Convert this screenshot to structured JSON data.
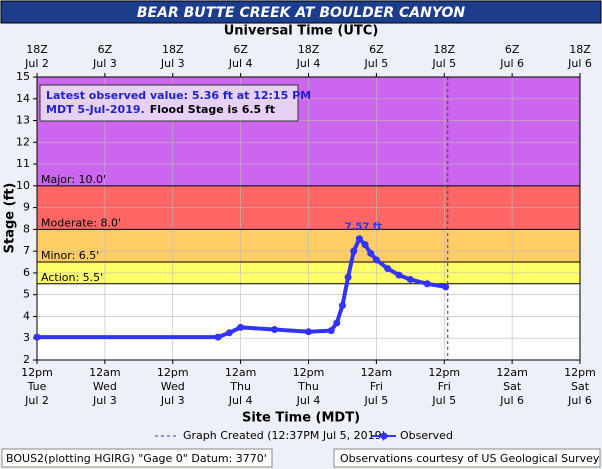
{
  "chart_data": {
    "type": "line",
    "title": "BEAR BUTTE CREEK AT BOULDER CANYON",
    "top_axis_label": "Universal Time (UTC)",
    "xlabel": "Site Time (MDT)",
    "ylabel": "Stage (ft)",
    "ylim": [
      2,
      15
    ],
    "yticks": [
      2,
      3,
      4,
      5,
      6,
      7,
      8,
      9,
      10,
      11,
      12,
      13,
      14,
      15
    ],
    "xlim": [
      "Jul 2 12:00",
      "Jul 6 12:00"
    ],
    "xticks": [
      {
        "value": "Jul 2 12:00",
        "label": "12pm\nTue\nJul 2"
      },
      {
        "value": "Jul 3 00:00",
        "label": "12am\nWed\nJul 3"
      },
      {
        "value": "Jul 3 12:00",
        "label": "12pm\nWed\nJul 3"
      },
      {
        "value": "Jul 4 00:00",
        "label": "12am\nThu\nJul 4"
      },
      {
        "value": "Jul 4 12:00",
        "label": "12pm\nThu\nJul 4"
      },
      {
        "value": "Jul 5 00:00",
        "label": "12am\nFri\nJul 5"
      },
      {
        "value": "Jul 5 12:00",
        "label": "12pm\nFri\nJul 5"
      },
      {
        "value": "Jul 6 00:00",
        "label": "12am\nSat\nJul 6"
      },
      {
        "value": "Jul 6 12:00",
        "label": "12pm\nSat\nJul 6"
      }
    ],
    "x2ticks": [
      {
        "value": "Jul 2 12:00",
        "label": "18Z\nJul 2"
      },
      {
        "value": "Jul 3 00:00",
        "label": "6Z\nJul 3"
      },
      {
        "value": "Jul 3 12:00",
        "label": "18Z\nJul 3"
      },
      {
        "value": "Jul 4 00:00",
        "label": "6Z\nJul 4"
      },
      {
        "value": "Jul 4 12:00",
        "label": "18Z\nJul 4"
      },
      {
        "value": "Jul 5 00:00",
        "label": "6Z\nJul 5"
      },
      {
        "value": "Jul 5 12:00",
        "label": "18Z\nJul 5"
      },
      {
        "value": "Jul 6 00:00",
        "label": "6Z\nJul 6"
      },
      {
        "value": "Jul 6 12:00",
        "label": "18Z\nJul 6"
      }
    ],
    "grid": true,
    "thresholds": [
      {
        "label": "Major: 10.0'",
        "value": 10,
        "color": "#cc66ee"
      },
      {
        "label": "Moderate: 8.0'",
        "value": 8,
        "color": "#ff6666"
      },
      {
        "label": "Minor: 6.5'",
        "value": 6.5,
        "color": "#ffcc66"
      },
      {
        "label": "Action: 5.5'",
        "value": 5.5,
        "color": "#ffff66"
      }
    ],
    "annotation": [
      "Latest observed value: 5.36 ft at 12:15 PM",
      "MDT 5-Jul-2019.",
      "Flood Stage is 6.5 ft"
    ],
    "peak_label": "7.57 ft",
    "created_line": "Jul 5 12:37",
    "created_label": "Graph Created (12:37PM Jul 5, 2019)",
    "x": [
      "Jul 2 12:00",
      "Jul 3 20:00",
      "Jul 3 22:00",
      "Jul 4 00:00",
      "Jul 4 06:00",
      "Jul 4 12:00",
      "Jul 4 16:00",
      "Jul 4 17:00",
      "Jul 4 18:00",
      "Jul 4 19:00",
      "Jul 4 20:00",
      "Jul 4 21:00",
      "Jul 4 22:00",
      "Jul 4 23:00",
      "Jul 5 00:00",
      "Jul 5 02:00",
      "Jul 5 04:00",
      "Jul 5 06:00",
      "Jul 5 09:00",
      "Jul 5 12:15"
    ],
    "series": [
      {
        "name": "Observed",
        "color": "#3333ff",
        "values": [
          3.05,
          3.05,
          3.25,
          3.5,
          3.4,
          3.3,
          3.35,
          3.7,
          4.5,
          5.8,
          7.0,
          7.57,
          7.3,
          6.9,
          6.6,
          6.2,
          5.9,
          5.7,
          5.5,
          5.36
        ]
      }
    ],
    "footer_left": "BOUS2(plotting HGIRG) \"Gage 0\" Datum: 3770'",
    "footer_right": "Observations courtesy of US Geological Survey"
  }
}
